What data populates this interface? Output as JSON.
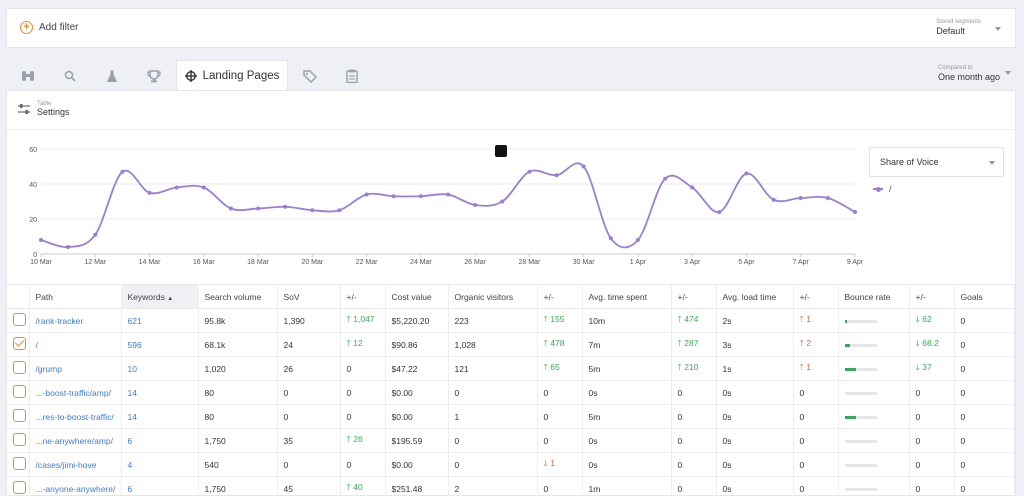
{
  "filter": {
    "add_label": "Add filter",
    "segments_label": "Saved segments",
    "segments_value": "Default"
  },
  "tabs": {
    "active_label": "Landing Pages",
    "compared_label": "Compared to",
    "compared_value": "One month ago"
  },
  "settings": {
    "small": "Table",
    "main": "Settings"
  },
  "chart_select": "Share of Voice",
  "legend_label": "/",
  "chart_data": {
    "type": "line",
    "series": [
      {
        "name": "/",
        "color": "#9b7ed4",
        "values": [
          8,
          4,
          11,
          47,
          35,
          38,
          38,
          26,
          26,
          27,
          25,
          25,
          34,
          33,
          33,
          34,
          28,
          30,
          47,
          45,
          50,
          9,
          8,
          43,
          38,
          24,
          46,
          31,
          32,
          32,
          24
        ]
      }
    ],
    "x_ticks": [
      "10 Mar",
      "12 Mar",
      "14 Mar",
      "16 Mar",
      "18 Mar",
      "20 Mar",
      "22 Mar",
      "24 Mar",
      "26 Mar",
      "28 Mar",
      "30 Mar",
      "1 Apr",
      "3 Apr",
      "5 Apr",
      "7 Apr",
      "9 Apr"
    ],
    "y_ticks": [
      "0",
      "20",
      "40",
      "60"
    ],
    "ylim": [
      0,
      60
    ],
    "grid": true
  },
  "table": {
    "headers": [
      "Path",
      "Keywords",
      "Search volume",
      "SoV",
      "+/-",
      "Cost value",
      "Organic visitors",
      "+/-",
      "Avg. time spent",
      "+/-",
      "Avg. load time",
      "+/-",
      "Bounce rate",
      "+/-",
      "Goals"
    ],
    "sort_marker": "▲",
    "rows": [
      {
        "checked": false,
        "path": "/rank-tracker",
        "kw": "621",
        "sv": "95.8k",
        "sov": "1,390",
        "sov_d": "1,047",
        "sov_dir": "up",
        "cost": "$5,220.20",
        "ov": "223",
        "ov_d": "155",
        "ov_dir": "up",
        "ts": "10m",
        "ts_d": "474",
        "ts_dir": "up",
        "lt": "2s",
        "lt_d": "1",
        "lt_dir": "down-up",
        "br": 0.05,
        "br_d": "62",
        "br_dir": "down-g",
        "goals": "0"
      },
      {
        "checked": true,
        "path": "/",
        "kw": "596",
        "sv": "68.1k",
        "sov": "24",
        "sov_d": "12",
        "sov_dir": "up",
        "cost": "$90.86",
        "ov": "1,028",
        "ov_d": "478",
        "ov_dir": "up",
        "ts": "7m",
        "ts_d": "287",
        "ts_dir": "up",
        "lt": "3s",
        "lt_d": "2",
        "lt_dir": "down-up",
        "br": 0.15,
        "br_d": "68.2",
        "br_dir": "down-g",
        "goals": "0"
      },
      {
        "checked": false,
        "path": "/grump",
        "kw": "10",
        "sv": "1,020",
        "sov": "26",
        "sov_d": "0",
        "sov_dir": "",
        "cost": "$47.22",
        "ov": "121",
        "ov_d": "65",
        "ov_dir": "up",
        "ts": "5m",
        "ts_d": "210",
        "ts_dir": "up",
        "lt": "1s",
        "lt_d": "1",
        "lt_dir": "down-up",
        "br": 0.35,
        "br_d": "37",
        "br_dir": "down-g",
        "goals": "0"
      },
      {
        "checked": false,
        "path": "...-boost-traffic/amp/",
        "kw": "14",
        "sv": "80",
        "sov": "0",
        "sov_d": "0",
        "sov_dir": "",
        "cost": "$0.00",
        "ov": "0",
        "ov_d": "0",
        "ov_dir": "",
        "ts": "0s",
        "ts_d": "0",
        "ts_dir": "",
        "lt": "0s",
        "lt_d": "0",
        "lt_dir": "",
        "br": 0,
        "br_d": "0",
        "br_dir": "",
        "goals": "0"
      },
      {
        "checked": false,
        "path": "...res-to-boost-traffic/",
        "kw": "14",
        "sv": "80",
        "sov": "0",
        "sov_d": "0",
        "sov_dir": "",
        "cost": "$0.00",
        "ov": "1",
        "ov_d": "0",
        "ov_dir": "",
        "ts": "5m",
        "ts_d": "0",
        "ts_dir": "",
        "lt": "0s",
        "lt_d": "0",
        "lt_dir": "",
        "br": 0.35,
        "br_d": "0",
        "br_dir": "",
        "goals": "0"
      },
      {
        "checked": false,
        "path": "...ne-anywhere/amp/",
        "kw": "6",
        "sv": "1,750",
        "sov": "35",
        "sov_d": "26",
        "sov_dir": "up",
        "cost": "$195.59",
        "ov": "0",
        "ov_d": "0",
        "ov_dir": "",
        "ts": "0s",
        "ts_d": "0",
        "ts_dir": "",
        "lt": "0s",
        "lt_d": "0",
        "lt_dir": "",
        "br": 0,
        "br_d": "0",
        "br_dir": "",
        "goals": "0"
      },
      {
        "checked": false,
        "path": "/cases/jimi-hove",
        "kw": "4",
        "sv": "540",
        "sov": "0",
        "sov_d": "0",
        "sov_dir": "",
        "cost": "$0.00",
        "ov": "0",
        "ov_d": "1",
        "ov_dir": "down",
        "ts": "0s",
        "ts_d": "0",
        "ts_dir": "",
        "lt": "0s",
        "lt_d": "0",
        "lt_dir": "",
        "br": 0,
        "br_d": "0",
        "br_dir": "",
        "goals": "0"
      },
      {
        "checked": false,
        "path": "...-anyone-anywhere/",
        "kw": "6",
        "sv": "1,750",
        "sov": "45",
        "sov_d": "40",
        "sov_dir": "up",
        "cost": "$251.48",
        "ov": "2",
        "ov_d": "0",
        "ov_dir": "",
        "ts": "1m",
        "ts_d": "0",
        "ts_dir": "",
        "lt": "0s",
        "lt_d": "0",
        "lt_dir": "",
        "br": 0,
        "br_d": "0",
        "br_dir": "",
        "goals": "0"
      }
    ]
  }
}
